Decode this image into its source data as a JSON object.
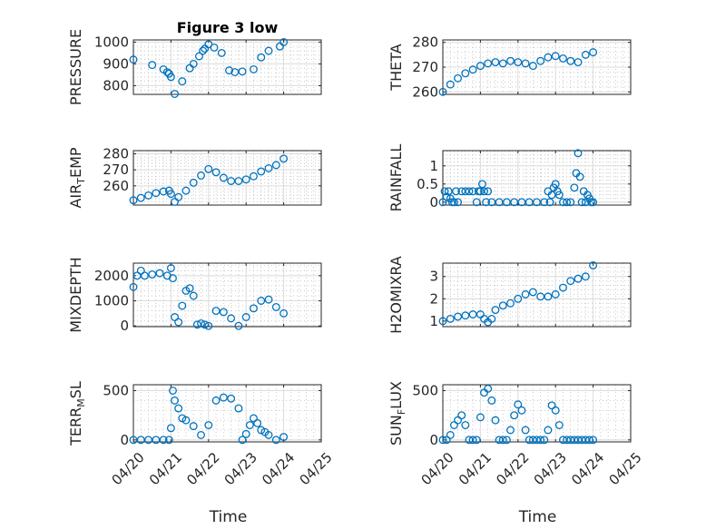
{
  "chart_data": [
    {
      "type": "scatter",
      "title": "Figure 3 low",
      "ylabel": "PRESSURE",
      "ylabel_sub": "",
      "ylabel_tail": "",
      "xlim": [
        0,
        5
      ],
      "ylim": [
        760,
        1010
      ],
      "yticks": [
        800,
        900,
        1000
      ],
      "xticks": [
        "04/20",
        "04/21",
        "04/22",
        "04/23",
        "04/24",
        "04/25"
      ],
      "xtick_labels_shown": false,
      "series": [
        {
          "x": [
            0,
            0.5,
            0.8,
            0.9,
            0.95,
            1.0,
            1.1,
            1.3,
            1.5,
            1.6,
            1.75,
            1.85,
            1.9,
            2.0,
            2.15,
            2.35,
            2.55,
            2.7,
            2.9,
            3.2,
            3.4,
            3.6,
            3.9,
            4.0
          ],
          "y": [
            920,
            895,
            875,
            862,
            855,
            840,
            762,
            820,
            880,
            900,
            935,
            960,
            970,
            990,
            975,
            950,
            870,
            862,
            865,
            875,
            930,
            960,
            980,
            1000
          ]
        }
      ]
    },
    {
      "type": "scatter",
      "title": "",
      "ylabel": "THETA",
      "ylabel_sub": "",
      "ylabel_tail": "",
      "xlim": [
        0,
        5
      ],
      "ylim": [
        259,
        281
      ],
      "yticks": [
        260,
        270,
        280
      ],
      "xticks": [
        "04/20",
        "04/21",
        "04/22",
        "04/23",
        "04/24",
        "04/25"
      ],
      "xtick_labels_shown": false,
      "series": [
        {
          "x": [
            0,
            0.2,
            0.4,
            0.6,
            0.8,
            1.0,
            1.2,
            1.4,
            1.6,
            1.8,
            2.0,
            2.2,
            2.4,
            2.6,
            2.8,
            3.0,
            3.2,
            3.4,
            3.6,
            3.8,
            4.0
          ],
          "y": [
            260,
            263,
            265.5,
            267.5,
            269,
            270.5,
            271.5,
            272,
            271.5,
            272.5,
            272,
            271.5,
            270.5,
            272.5,
            274,
            274.5,
            273.5,
            272.5,
            272,
            275,
            276
          ]
        }
      ]
    },
    {
      "type": "scatter",
      "title": "",
      "ylabel": "AIR",
      "ylabel_sub": "T",
      "ylabel_tail": "EMP",
      "xlim": [
        0,
        5
      ],
      "ylim": [
        248,
        282
      ],
      "yticks": [
        260,
        270,
        280
      ],
      "xticks": [
        "04/20",
        "04/21",
        "04/22",
        "04/23",
        "04/24",
        "04/25"
      ],
      "xtick_labels_shown": false,
      "series": [
        {
          "x": [
            0,
            0.2,
            0.4,
            0.6,
            0.8,
            0.95,
            1.0,
            1.1,
            1.2,
            1.4,
            1.6,
            1.8,
            2.0,
            2.2,
            2.4,
            2.6,
            2.8,
            3.0,
            3.2,
            3.4,
            3.6,
            3.8,
            4.0
          ],
          "y": [
            251,
            252.5,
            254,
            255.5,
            256.5,
            257,
            255,
            250,
            253,
            257,
            262,
            266.5,
            270.5,
            268.5,
            265,
            263,
            263,
            264,
            266,
            269,
            271,
            273,
            277
          ]
        }
      ]
    },
    {
      "type": "scatter",
      "title": "",
      "ylabel": "RAINFALL",
      "ylabel_sub": "",
      "ylabel_tail": "",
      "xlim": [
        0,
        5
      ],
      "ylim": [
        -0.08,
        1.42
      ],
      "yticks": [
        0,
        0.5,
        1
      ],
      "xticks": [
        "04/20",
        "04/21",
        "04/22",
        "04/23",
        "04/24",
        "04/25"
      ],
      "xtick_labels_shown": false,
      "series": [
        {
          "x": [
            0,
            0.05,
            0.1,
            0.15,
            0.2,
            0.25,
            0.3,
            0.35,
            0.4,
            0.5,
            0.6,
            0.7,
            0.8,
            0.9,
            0.95,
            1.0,
            1.05,
            1.1,
            1.15,
            1.2,
            1.3,
            1.5,
            1.7,
            1.9,
            2.1,
            2.3,
            2.5,
            2.7,
            2.8,
            2.85,
            2.9,
            2.95,
            3.0,
            3.05,
            3.1,
            3.2,
            3.3,
            3.4,
            3.5,
            3.55,
            3.6,
            3.65,
            3.7,
            3.75,
            3.8,
            3.85,
            3.9,
            3.95,
            4.0
          ],
          "y": [
            0,
            0.3,
            0.15,
            0.3,
            0.1,
            0,
            0,
            0.3,
            0,
            0.3,
            0.3,
            0.3,
            0.3,
            0,
            0.3,
            0.3,
            0.5,
            0.3,
            0,
            0.3,
            0,
            0,
            0,
            0,
            0,
            0,
            0,
            0,
            0.3,
            0,
            0.2,
            0.4,
            0.5,
            0.3,
            0.2,
            0,
            0,
            0,
            0.4,
            0.8,
            1.35,
            0.7,
            0,
            0.3,
            0,
            0.2,
            0.1,
            0,
            0
          ]
        }
      ]
    },
    {
      "type": "scatter",
      "title": "",
      "ylabel": "MIXDEPTH",
      "ylabel_sub": "",
      "ylabel_tail": "",
      "xlim": [
        0,
        5
      ],
      "ylim": [
        -30,
        2500
      ],
      "yticks": [
        0,
        1000,
        2000
      ],
      "xticks": [
        "04/20",
        "04/21",
        "04/22",
        "04/23",
        "04/24",
        "04/25"
      ],
      "xtick_labels_shown": false,
      "series": [
        {
          "x": [
            0,
            0.1,
            0.2,
            0.3,
            0.5,
            0.7,
            0.9,
            1.0,
            1.05,
            1.1,
            1.2,
            1.3,
            1.4,
            1.5,
            1.6,
            1.7,
            1.8,
            1.9,
            2.0,
            2.2,
            2.4,
            2.6,
            2.8,
            3.0,
            3.2,
            3.4,
            3.6,
            3.8,
            4.0
          ],
          "y": [
            1550,
            2000,
            2200,
            2000,
            2050,
            2100,
            2000,
            2300,
            1900,
            350,
            150,
            800,
            1400,
            1500,
            1200,
            50,
            100,
            50,
            0,
            600,
            550,
            300,
            0,
            350,
            700,
            1000,
            1050,
            750,
            500
          ]
        }
      ]
    },
    {
      "type": "scatter",
      "title": "",
      "ylabel": "H2OMIXRA",
      "ylabel_sub": "",
      "ylabel_tail": "",
      "xlim": [
        0,
        5
      ],
      "ylim": [
        0.75,
        3.6
      ],
      "yticks": [
        1,
        2,
        3
      ],
      "xticks": [
        "04/20",
        "04/21",
        "04/22",
        "04/23",
        "04/24",
        "04/25"
      ],
      "xtick_labels_shown": false,
      "series": [
        {
          "x": [
            0,
            0.2,
            0.4,
            0.6,
            0.8,
            1.0,
            1.1,
            1.2,
            1.3,
            1.4,
            1.6,
            1.8,
            2.0,
            2.2,
            2.4,
            2.6,
            2.8,
            3.0,
            3.2,
            3.4,
            3.6,
            3.8,
            4.0
          ],
          "y": [
            1.0,
            1.1,
            1.2,
            1.25,
            1.3,
            1.3,
            1.1,
            0.95,
            1.1,
            1.5,
            1.7,
            1.8,
            2.0,
            2.2,
            2.3,
            2.1,
            2.1,
            2.2,
            2.5,
            2.8,
            2.9,
            3.0,
            3.5
          ]
        }
      ]
    },
    {
      "type": "scatter",
      "title": "",
      "ylabel": "TERR",
      "ylabel_sub": "M",
      "ylabel_tail": "SL",
      "xlim": [
        0,
        5
      ],
      "ylim": [
        -20,
        560
      ],
      "yticks": [
        0,
        500
      ],
      "xticks": [
        "04/20",
        "04/21",
        "04/22",
        "04/23",
        "04/24",
        "04/25"
      ],
      "xtick_labels_shown": false,
      "series": [
        {
          "x": [
            0,
            0.2,
            0.4,
            0.6,
            0.8,
            0.95,
            1.0,
            1.05,
            1.1,
            1.2,
            1.3,
            1.4,
            1.6,
            1.8,
            2.0,
            2.2,
            2.4,
            2.6,
            2.8,
            2.9,
            3.0,
            3.1,
            3.2,
            3.3,
            3.4,
            3.5,
            3.6,
            3.8,
            4.0
          ],
          "y": [
            0,
            0,
            0,
            0,
            0,
            0,
            120,
            500,
            400,
            320,
            220,
            200,
            140,
            50,
            150,
            400,
            430,
            420,
            320,
            0,
            60,
            150,
            220,
            170,
            100,
            80,
            50,
            0,
            30
          ]
        }
      ]
    },
    {
      "type": "scatter",
      "title": "",
      "ylabel": "SUN",
      "ylabel_sub": "F",
      "ylabel_tail": "LUX",
      "xlim": [
        0,
        5
      ],
      "ylim": [
        -20,
        560
      ],
      "yticks": [
        0,
        500
      ],
      "xticks": [
        "04/20",
        "04/21",
        "04/22",
        "04/23",
        "04/24",
        "04/25"
      ],
      "xtick_labels_shown": false,
      "series": [
        {
          "x": [
            0,
            0.1,
            0.2,
            0.3,
            0.4,
            0.5,
            0.6,
            0.7,
            0.8,
            0.9,
            1.0,
            1.1,
            1.2,
            1.3,
            1.4,
            1.5,
            1.6,
            1.7,
            1.8,
            1.9,
            2.0,
            2.1,
            2.2,
            2.3,
            2.4,
            2.5,
            2.6,
            2.7,
            2.8,
            2.9,
            3.0,
            3.1,
            3.2,
            3.3,
            3.4,
            3.5,
            3.6,
            3.7,
            3.8,
            3.9,
            4.0
          ],
          "y": [
            0,
            0,
            50,
            150,
            200,
            250,
            150,
            0,
            0,
            0,
            230,
            480,
            520,
            400,
            200,
            0,
            0,
            0,
            100,
            250,
            360,
            300,
            100,
            0,
            0,
            0,
            0,
            0,
            100,
            350,
            300,
            150,
            0,
            0,
            0,
            0,
            0,
            0,
            0,
            0,
            0
          ]
        }
      ]
    }
  ],
  "bottom_xticks": [
    "04/20",
    "04/21",
    "04/22",
    "04/23",
    "04/24",
    "04/25"
  ],
  "bottom_xlabel": "Time",
  "colors": {
    "marker": "#0072bd",
    "axis": "#262626"
  }
}
